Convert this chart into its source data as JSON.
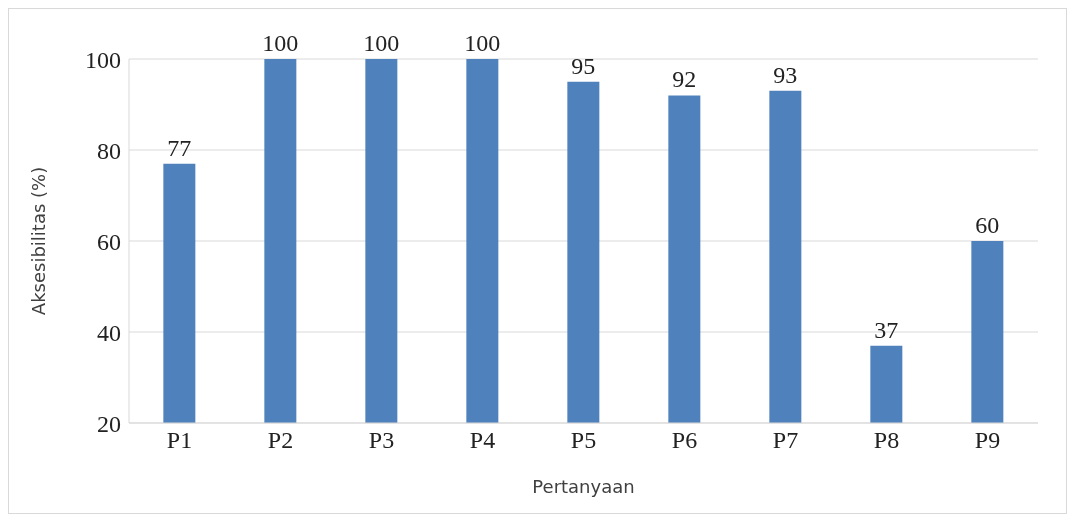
{
  "chart_data": {
    "type": "bar",
    "xlabel": "Pertanyaan",
    "ylabel": "Aksesibilitas (%)",
    "categories": [
      "P1",
      "P2",
      "P3",
      "P4",
      "P5",
      "P6",
      "P7",
      "P8",
      "P9"
    ],
    "values": [
      77,
      100,
      100,
      100,
      95,
      92,
      93,
      37,
      60
    ],
    "color": "#4f81bd",
    "ylim": [
      20,
      100
    ],
    "yticks": [
      20,
      40,
      60,
      80,
      100
    ],
    "grid": "y",
    "data_labels": true,
    "legend": false
  }
}
